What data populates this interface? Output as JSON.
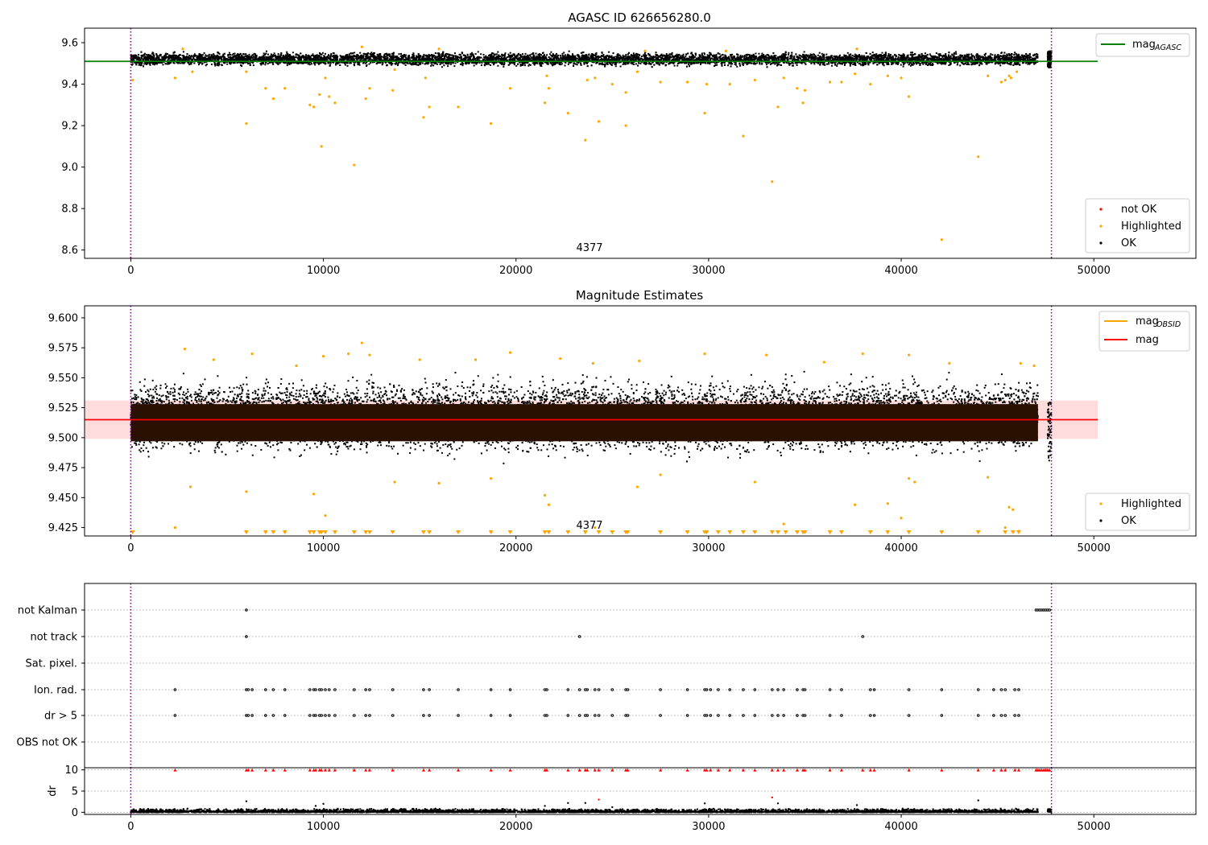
{
  "chart_data": [
    {
      "type": "scatter",
      "title": "AGASC ID 626656280.0",
      "xlim": [
        -2400,
        55300
      ],
      "ylim": [
        8.56,
        9.67
      ],
      "xticks": [
        0,
        10000,
        20000,
        30000,
        40000,
        50000
      ],
      "yticks": [
        8.6,
        8.8,
        9.0,
        9.2,
        9.4,
        9.6
      ],
      "ytick_labels": [
        "8.6",
        "8.8",
        "9.0",
        "9.2",
        "9.4",
        "9.6"
      ],
      "vlines": [
        0,
        47800
      ],
      "annotation": "4377",
      "legend_lines": [
        {
          "label": "mag",
          "sub": "AGASC",
          "color": "#008000"
        }
      ],
      "legend_points": [
        {
          "label": "not OK",
          "color": "#ff0000"
        },
        {
          "label": "Highlighted",
          "color": "#ffa500"
        },
        {
          "label": "OK",
          "color": "#000000"
        }
      ],
      "hline": {
        "y": 9.51,
        "x_range": [
          -2400,
          50200
        ],
        "color": "#008000"
      },
      "ok_band": {
        "x_range": [
          0,
          47100
        ],
        "y_range": [
          9.48,
          9.56
        ],
        "extra_x_range": [
          47600,
          47800
        ]
      },
      "highlighted_points": [
        [
          100,
          9.42
        ],
        [
          2300,
          9.43
        ],
        [
          2700,
          9.57
        ],
        [
          3200,
          9.46
        ],
        [
          6000,
          9.21
        ],
        [
          6000,
          9.46
        ],
        [
          7000,
          9.38
        ],
        [
          7400,
          9.33
        ],
        [
          8000,
          9.38
        ],
        [
          9300,
          9.3
        ],
        [
          9500,
          9.29
        ],
        [
          9800,
          9.35
        ],
        [
          9900,
          9.1
        ],
        [
          10100,
          9.43
        ],
        [
          10300,
          9.34
        ],
        [
          10600,
          9.31
        ],
        [
          11600,
          9.01
        ],
        [
          12200,
          9.33
        ],
        [
          12400,
          9.38
        ],
        [
          13600,
          9.37
        ],
        [
          13700,
          9.47
        ],
        [
          15200,
          9.24
        ],
        [
          15300,
          9.43
        ],
        [
          15500,
          9.29
        ],
        [
          17000,
          9.29
        ],
        [
          18700,
          9.21
        ],
        [
          19700,
          9.38
        ],
        [
          21500,
          9.31
        ],
        [
          21600,
          9.44
        ],
        [
          21700,
          9.38
        ],
        [
          22700,
          9.26
        ],
        [
          23600,
          9.13
        ],
        [
          23700,
          9.42
        ],
        [
          24100,
          9.43
        ],
        [
          24300,
          9.22
        ],
        [
          25000,
          9.4
        ],
        [
          25700,
          9.2
        ],
        [
          25700,
          9.36
        ],
        [
          26300,
          9.46
        ],
        [
          27500,
          9.41
        ],
        [
          28900,
          9.41
        ],
        [
          29800,
          9.26
        ],
        [
          29900,
          9.4
        ],
        [
          31100,
          9.4
        ],
        [
          31800,
          9.15
        ],
        [
          32400,
          9.42
        ],
        [
          33300,
          8.93
        ],
        [
          33600,
          9.29
        ],
        [
          33900,
          9.43
        ],
        [
          34600,
          9.38
        ],
        [
          34900,
          9.31
        ],
        [
          35000,
          9.37
        ],
        [
          36300,
          9.41
        ],
        [
          36900,
          9.41
        ],
        [
          37600,
          9.45
        ],
        [
          38400,
          9.4
        ],
        [
          39300,
          9.44
        ],
        [
          40000,
          9.43
        ],
        [
          40400,
          9.34
        ],
        [
          42100,
          8.65
        ],
        [
          44000,
          9.05
        ],
        [
          44500,
          9.44
        ],
        [
          45200,
          9.41
        ],
        [
          45400,
          9.42
        ],
        [
          45600,
          9.44
        ],
        [
          45700,
          9.43
        ],
        [
          46000,
          9.46
        ],
        [
          26700,
          9.56
        ],
        [
          30900,
          9.56
        ],
        [
          16000,
          9.57
        ],
        [
          37700,
          9.57
        ],
        [
          12000,
          9.58
        ]
      ]
    },
    {
      "type": "scatter",
      "title": "Magnitude Estimates",
      "xlim": [
        -2400,
        55300
      ],
      "ylim": [
        9.418,
        9.61
      ],
      "xticks": [
        0,
        10000,
        20000,
        30000,
        40000,
        50000
      ],
      "yticks": [
        9.425,
        9.45,
        9.475,
        9.5,
        9.525,
        9.55,
        9.575,
        9.6
      ],
      "ytick_labels": [
        "9.425",
        "9.450",
        "9.475",
        "9.500",
        "9.525",
        "9.550",
        "9.575",
        "9.600"
      ],
      "vlines": [
        0,
        47800
      ],
      "annotation": "4377",
      "legend_lines": [
        {
          "label": "mag",
          "sub": "OBSID",
          "color": "#ffa500"
        },
        {
          "label": "mag",
          "sub": "",
          "color": "#ff0000"
        }
      ],
      "legend_points": [
        {
          "label": "Highlighted",
          "color": "#ffa500"
        },
        {
          "label": "OK",
          "color": "#000000"
        }
      ],
      "hline": {
        "y": 9.515,
        "x_range": [
          -2400,
          50200
        ],
        "color": "#ff0000"
      },
      "band": {
        "y_range": [
          9.499,
          9.531
        ],
        "x_range": [
          -2400,
          50200
        ],
        "color": "#ffdcdc"
      },
      "core_band": {
        "x_range": [
          0,
          47100
        ],
        "y_range": [
          9.497,
          9.528
        ],
        "color": "#2a1000"
      },
      "scatter_band": {
        "x_range": [
          0,
          47100
        ],
        "y_range": [
          9.475,
          9.56
        ]
      },
      "highlighted_points": [
        [
          2300,
          9.425
        ],
        [
          3100,
          9.459
        ],
        [
          6000,
          9.455
        ],
        [
          9500,
          9.453
        ],
        [
          10100,
          9.435
        ],
        [
          13700,
          9.463
        ],
        [
          16000,
          9.462
        ],
        [
          18700,
          9.466
        ],
        [
          21500,
          9.452
        ],
        [
          21700,
          9.444
        ],
        [
          24100,
          9.425
        ],
        [
          26300,
          9.459
        ],
        [
          27500,
          9.469
        ],
        [
          32400,
          9.463
        ],
        [
          33900,
          9.428
        ],
        [
          37600,
          9.444
        ],
        [
          39300,
          9.445
        ],
        [
          40000,
          9.433
        ],
        [
          40400,
          9.466
        ],
        [
          40700,
          9.463
        ],
        [
          44500,
          9.467
        ],
        [
          45400,
          9.425
        ],
        [
          45600,
          9.442
        ],
        [
          45800,
          9.44
        ],
        [
          46100,
          9.422
        ],
        [
          2800,
          9.574
        ],
        [
          4300,
          9.565
        ],
        [
          6300,
          9.57
        ],
        [
          8600,
          9.56
        ],
        [
          10000,
          9.568
        ],
        [
          11300,
          9.57
        ],
        [
          12000,
          9.579
        ],
        [
          12400,
          9.569
        ],
        [
          15000,
          9.565
        ],
        [
          17900,
          9.565
        ],
        [
          19700,
          9.571
        ],
        [
          22300,
          9.566
        ],
        [
          24000,
          9.562
        ],
        [
          26400,
          9.564
        ],
        [
          29800,
          9.57
        ],
        [
          33000,
          9.569
        ],
        [
          36000,
          9.563
        ],
        [
          38000,
          9.57
        ],
        [
          40400,
          9.569
        ],
        [
          42500,
          9.562
        ],
        [
          46200,
          9.562
        ],
        [
          46900,
          9.56
        ]
      ],
      "floor_markers_x": [
        100,
        6000,
        7000,
        7400,
        8000,
        9300,
        9500,
        9800,
        9900,
        10100,
        10600,
        11600,
        12200,
        12400,
        13600,
        15200,
        15500,
        17000,
        18700,
        19700,
        21500,
        21700,
        22700,
        23600,
        24300,
        25000,
        25700,
        25800,
        27500,
        28900,
        29800,
        29900,
        30500,
        31100,
        31800,
        32400,
        33300,
        33600,
        34000,
        34600,
        34900,
        35000,
        36300,
        36900,
        38400,
        39300,
        40400,
        42100,
        44000,
        45400,
        45800,
        46100
      ]
    },
    {
      "type": "scatter",
      "xlim": [
        -2400,
        55300
      ],
      "xticks": [
        0,
        10000,
        20000,
        30000,
        40000,
        50000
      ],
      "vlines": [
        0,
        47800
      ],
      "categories": [
        "not Kalman",
        "not track",
        "Sat. pixel.",
        "Ion. rad.",
        "dr > 5",
        "OBS not OK"
      ],
      "category_points": {
        "not Kalman": [
          6000,
          47000,
          47100,
          47200,
          47300,
          47400,
          47500,
          47600,
          47700
        ],
        "not track": [
          6000,
          23300,
          38000
        ],
        "Sat. pixel.": [],
        "Ion. rad.": [
          2300,
          6000,
          6100,
          6300,
          7000,
          7400,
          8000,
          9300,
          9500,
          9600,
          9800,
          9900,
          10100,
          10300,
          10600,
          11600,
          12200,
          12400,
          13600,
          15200,
          15500,
          17000,
          18700,
          19700,
          21500,
          21600,
          22700,
          23300,
          23600,
          23700,
          24100,
          24300,
          25000,
          25700,
          25800,
          27500,
          28900,
          29800,
          29900,
          30100,
          30500,
          31100,
          31800,
          32400,
          33300,
          33600,
          33900,
          34600,
          34900,
          35000,
          36300,
          36900,
          38400,
          38600,
          40400,
          42100,
          44000,
          44800,
          45200,
          45400,
          45900,
          46100
        ],
        "dr > 5": [
          2300,
          6000,
          6100,
          6300,
          7000,
          7400,
          8000,
          9300,
          9500,
          9600,
          9800,
          9900,
          10100,
          10300,
          10600,
          11600,
          12200,
          12400,
          13600,
          15200,
          15500,
          17000,
          18700,
          19700,
          21500,
          21600,
          22700,
          23300,
          23600,
          23700,
          24100,
          24300,
          25000,
          25700,
          25800,
          27500,
          28900,
          29800,
          29900,
          30100,
          30500,
          31100,
          31800,
          32400,
          33300,
          33600,
          33900,
          34600,
          34900,
          35000,
          36300,
          36900,
          38400,
          38600,
          40400,
          42100,
          44000,
          44800,
          45200,
          45400,
          45900,
          46100
        ],
        "OBS not OK": []
      },
      "dr_ylabel": "dr",
      "dr_yticks": [
        0,
        5,
        10
      ],
      "dr_ylim": [
        -0.5,
        10.5
      ],
      "dr_clipped_x": [
        2300,
        6000,
        6100,
        6300,
        7000,
        7400,
        8000,
        9300,
        9500,
        9600,
        9800,
        9900,
        10100,
        10300,
        10600,
        11600,
        12200,
        12400,
        13600,
        15200,
        15500,
        17000,
        18700,
        19700,
        21500,
        21600,
        22700,
        23300,
        23600,
        23700,
        24100,
        24300,
        25000,
        25700,
        25800,
        27500,
        28900,
        29800,
        29900,
        30100,
        30500,
        31100,
        31800,
        32400,
        33300,
        33600,
        33900,
        34600,
        34900,
        35000,
        36300,
        36900,
        38000,
        38400,
        38600,
        40400,
        42100,
        44000,
        44800,
        45200,
        45400,
        45900,
        46100,
        47000,
        47100,
        47200,
        47300,
        47400,
        47500,
        47600,
        47700
      ],
      "dr_points": [
        [
          6000,
          2.6
        ],
        [
          9600,
          1.5
        ],
        [
          10000,
          2.0
        ],
        [
          21500,
          1.5
        ],
        [
          22700,
          2.2
        ],
        [
          23600,
          2.2
        ],
        [
          24300,
          3.0
        ],
        [
          29800,
          2.1
        ],
        [
          33300,
          3.5
        ],
        [
          33600,
          2.1
        ],
        [
          44000,
          2.8
        ],
        [
          37700,
          1.7
        ],
        [
          25000,
          1.2
        ]
      ]
    }
  ]
}
